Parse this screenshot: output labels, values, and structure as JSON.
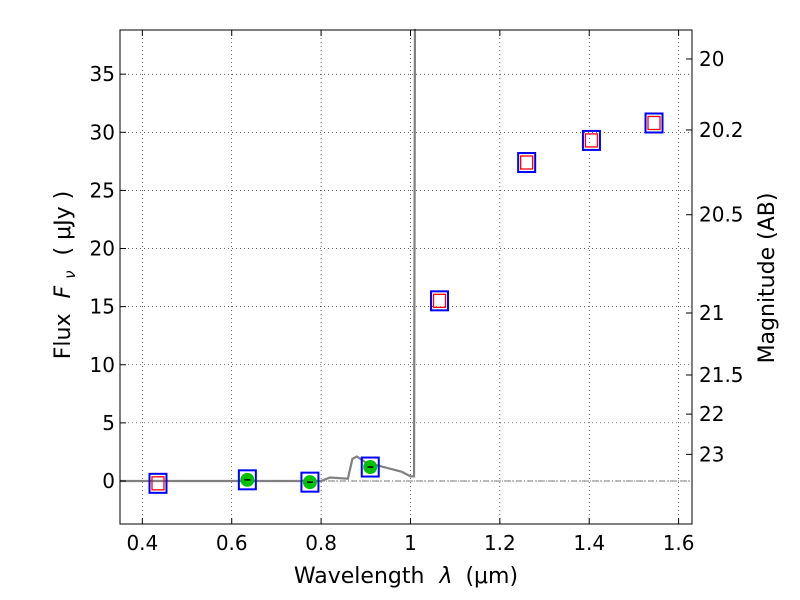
{
  "chart_data": {
    "type": "scatter",
    "xlabel_text": "Wavelength",
    "xlabel_symbol": "λ",
    "xlabel_unit": "(μm)",
    "ylabel_text": "Flux",
    "ylabel_symbol": "F",
    "ylabel_sub": "ν",
    "ylabel_unit": "(  μJy )",
    "y2label": "Magnitude (AB)",
    "xlim": [
      0.35,
      1.63
    ],
    "ylim": [
      -3.7,
      38.8
    ],
    "xticks": [
      0.4,
      0.6,
      0.8,
      1.0,
      1.2,
      1.4,
      1.6
    ],
    "xtick_labels": [
      "0.4",
      "0.6",
      "0.8",
      "1",
      "1.2",
      "1.4",
      "1.6"
    ],
    "yticks": [
      0,
      5,
      10,
      15,
      20,
      25,
      30,
      35
    ],
    "ytick_labels": [
      "0",
      "5",
      "10",
      "15",
      "20",
      "25",
      "30",
      "35"
    ],
    "mag_ticks": [
      20,
      20.2,
      20.5,
      21,
      21.5,
      22,
      23
    ],
    "mag_tick_labels": [
      "20",
      "20.2",
      "20.5",
      "21",
      "21.5",
      "22",
      "23"
    ],
    "grid": true,
    "zero_line": true,
    "colors": {
      "model": "#808080",
      "observed_marker": "#0000ff",
      "model_marker": "#ff0000",
      "detection_fill": "#00c000",
      "zero_line": "#555555",
      "grid": "#000000"
    },
    "model_spectrum": {
      "x": [
        0.35,
        0.8,
        0.82,
        0.86,
        0.87,
        0.88,
        0.9,
        0.92,
        0.95,
        0.98,
        1.0,
        1.008,
        1.01,
        1.012
      ],
      "y": [
        0.0,
        0.0,
        0.3,
        0.2,
        1.9,
        2.1,
        1.6,
        1.4,
        1.1,
        0.8,
        0.4,
        0.4,
        39,
        39
      ]
    },
    "photometry": [
      {
        "x": 0.435,
        "y": -0.2,
        "detected": false
      },
      {
        "x": 0.635,
        "y": 0.1,
        "detected": true
      },
      {
        "x": 0.775,
        "y": -0.1,
        "detected": true
      },
      {
        "x": 0.91,
        "y": 1.2,
        "detected": true
      },
      {
        "x": 1.065,
        "y": 15.5,
        "detected": false
      },
      {
        "x": 1.26,
        "y": 27.4,
        "detected": false
      },
      {
        "x": 1.405,
        "y": 29.3,
        "detected": false
      },
      {
        "x": 1.545,
        "y": 30.8,
        "detected": false
      }
    ]
  }
}
